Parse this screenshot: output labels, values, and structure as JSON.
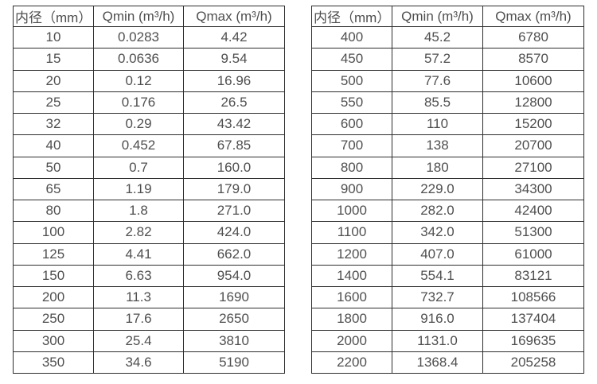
{
  "colors": {
    "background": "#ffffff",
    "border": "#2e2e2e",
    "text": "#4f4f4f"
  },
  "tables": [
    {
      "name": "flow-rate-table-small-diameters",
      "headers": [
        "内径（mm）",
        "Qmin (m³/h)",
        "Qmax (m³/h)"
      ],
      "rows": [
        [
          "10",
          "0.0283",
          "4.42"
        ],
        [
          "15",
          "0.0636",
          "9.54"
        ],
        [
          "20",
          "0.12",
          "16.96"
        ],
        [
          "25",
          "0.176",
          "26.5"
        ],
        [
          "32",
          "0.29",
          "43.42"
        ],
        [
          "40",
          "0.452",
          "67.85"
        ],
        [
          "50",
          "0.7",
          "160.0"
        ],
        [
          "65",
          "1.19",
          "179.0"
        ],
        [
          "80",
          "1.8",
          "271.0"
        ],
        [
          "100",
          "2.82",
          "424.0"
        ],
        [
          "125",
          "4.41",
          "662.0"
        ],
        [
          "150",
          "6.63",
          "954.0"
        ],
        [
          "200",
          "11.3",
          "1690"
        ],
        [
          "250",
          "17.6",
          "2650"
        ],
        [
          "300",
          "25.4",
          "3810"
        ],
        [
          "350",
          "34.6",
          "5190"
        ]
      ]
    },
    {
      "name": "flow-rate-table-large-diameters",
      "headers": [
        "内径（mm）",
        "Qmin (m³/h)",
        "Qmax (m³/h)"
      ],
      "rows": [
        [
          "400",
          "45.2",
          "6780"
        ],
        [
          "450",
          "57.2",
          "8570"
        ],
        [
          "500",
          "77.6",
          "10600"
        ],
        [
          "550",
          "85.5",
          "12800"
        ],
        [
          "600",
          "110",
          "15200"
        ],
        [
          "700",
          "138",
          "20700"
        ],
        [
          "800",
          "180",
          "27100"
        ],
        [
          "900",
          "229.0",
          "34300"
        ],
        [
          "1000",
          "282.0",
          "42400"
        ],
        [
          "1100",
          "342.0",
          "51300"
        ],
        [
          "1200",
          "407.0",
          "61000"
        ],
        [
          "1400",
          "554.1",
          "83121"
        ],
        [
          "1600",
          "732.7",
          "108566"
        ],
        [
          "1800",
          "916.0",
          "137404"
        ],
        [
          "2000",
          "1131.0",
          "169635"
        ],
        [
          "2200",
          "1368.4",
          "205258"
        ]
      ]
    }
  ]
}
